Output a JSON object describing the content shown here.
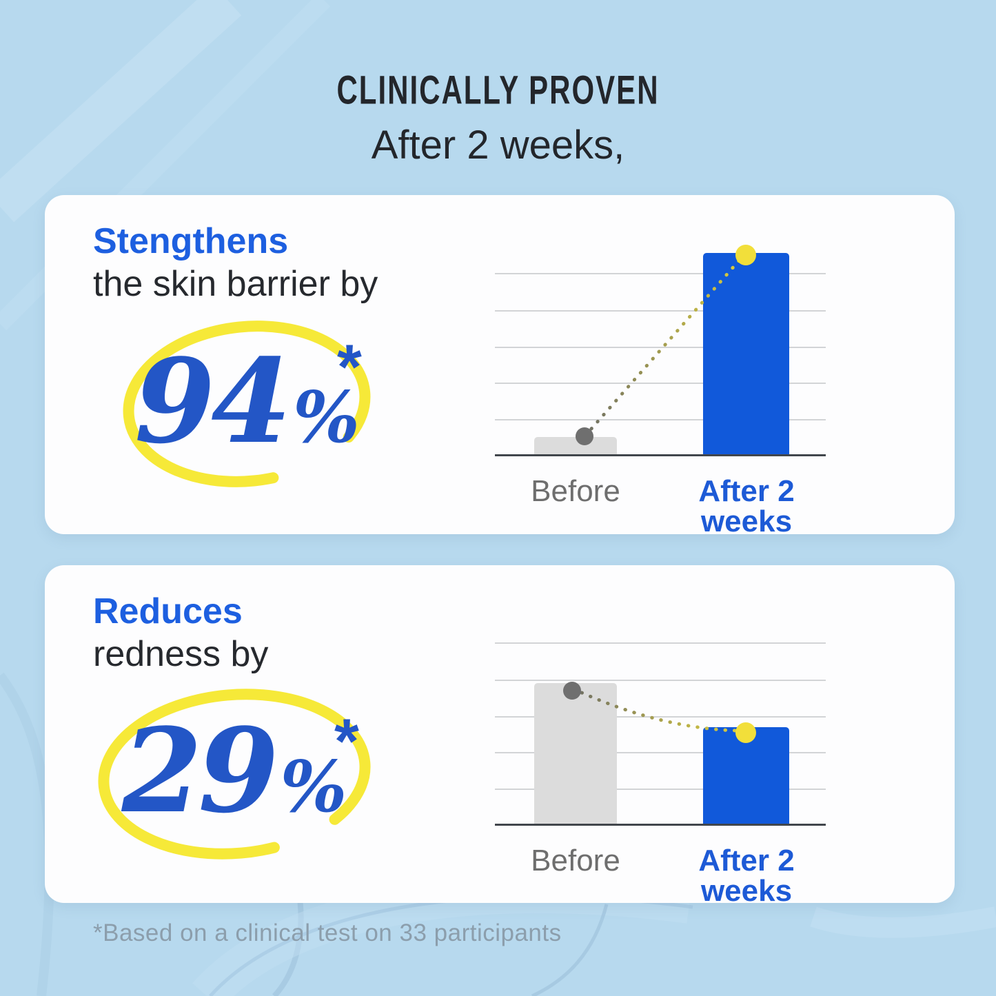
{
  "header": {
    "title": "CLINICALLY PROVEN",
    "subtitle": "After 2 weeks,"
  },
  "footnote": "*Based on a clinical test on 33 participants",
  "colors": {
    "bg": "#b7d9ee",
    "card": "#fdfdfe",
    "title": "#23262b",
    "accent": "#1d5fe0",
    "heading-dark": "#26292e",
    "numeral": "#2356c6",
    "bar-blue": "#1159da",
    "bar-gray": "#dcdcdc",
    "grid": "#d2d4d6",
    "baseline": "#41464c",
    "dot-gray": "#6f6f6f",
    "dot-yellow": "#f2df3a",
    "yellow": "#f6e832",
    "label-gray": "#6e6e6e",
    "label-blue": "#1d5ad6",
    "footnote": "#8c9eac"
  },
  "cards": [
    {
      "heading_accent": "Stengthens",
      "heading_rest": "the skin barrier by",
      "stat_value": "94",
      "stat_unit": "%",
      "stat_asterisk": "*"
    },
    {
      "heading_accent": "Reduces",
      "heading_rest": "redness by",
      "stat_value": "29",
      "stat_unit": "%",
      "stat_asterisk": "*"
    }
  ],
  "chart_data": [
    {
      "type": "bar",
      "title": "Skin barrier strength before vs after 2 weeks",
      "categories": [
        "Before",
        "After 2 weeks"
      ],
      "values": [
        8.5,
        100
      ],
      "value_note": "relative bar heights, % of tallest bar; claim: strengthens skin barrier by 94%",
      "bar_colors": [
        "#dcdcdc",
        "#1159da"
      ],
      "marker_colors": [
        "#6f6f6f",
        "#f2df3a"
      ],
      "connector": "dotted line from Before marker up to After marker",
      "grid": true,
      "legend": false,
      "ylabel": "",
      "xlabel": ""
    },
    {
      "type": "bar",
      "title": "Redness before vs after 2 weeks",
      "categories": [
        "Before",
        "After 2 weeks"
      ],
      "values": [
        70,
        48
      ],
      "value_note": "relative bar heights, % of tallest bar in panel 1; claim: reduces redness by 29%",
      "bar_colors": [
        "#dcdcdc",
        "#1159da"
      ],
      "marker_colors": [
        "#6f6f6f",
        "#f2df3a"
      ],
      "connector": "dotted line from Before marker down to After marker",
      "grid": true,
      "legend": false,
      "ylabel": "",
      "xlabel": ""
    }
  ]
}
